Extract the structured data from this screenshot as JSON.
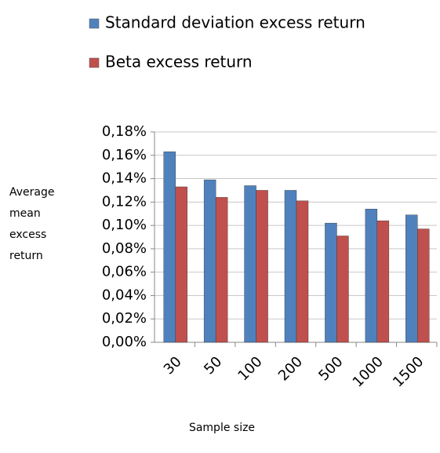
{
  "chart_data": {
    "type": "bar",
    "ylabel": "Average mean excess return",
    "xlabel": "Sample size",
    "categories": [
      "30",
      "50",
      "100",
      "200",
      "500",
      "1000",
      "1500"
    ],
    "series": [
      {
        "name": "Standard deviation excess return",
        "color": "#4f81bd",
        "values": [
          0.163,
          0.139,
          0.134,
          0.13,
          0.102,
          0.114,
          0.109
        ]
      },
      {
        "name": "Beta excess return",
        "color": "#c0504d",
        "values": [
          0.133,
          0.124,
          0.13,
          0.121,
          0.091,
          0.104,
          0.097
        ]
      }
    ],
    "ylim": [
      0,
      0.18
    ],
    "yticks": [
      {
        "value": 0,
        "label": "0,00%"
      },
      {
        "value": 0.02,
        "label": "0,02%"
      },
      {
        "value": 0.04,
        "label": "0,04%"
      },
      {
        "value": 0.06,
        "label": "0,06%"
      },
      {
        "value": 0.08,
        "label": "0,08%"
      },
      {
        "value": 0.1,
        "label": "0,10%"
      },
      {
        "value": 0.12,
        "label": "0,12%"
      },
      {
        "value": 0.14,
        "label": "0,14%"
      },
      {
        "value": 0.16,
        "label": "0,16%"
      },
      {
        "value": 0.18,
        "label": "0,18%"
      }
    ],
    "grid": true
  }
}
